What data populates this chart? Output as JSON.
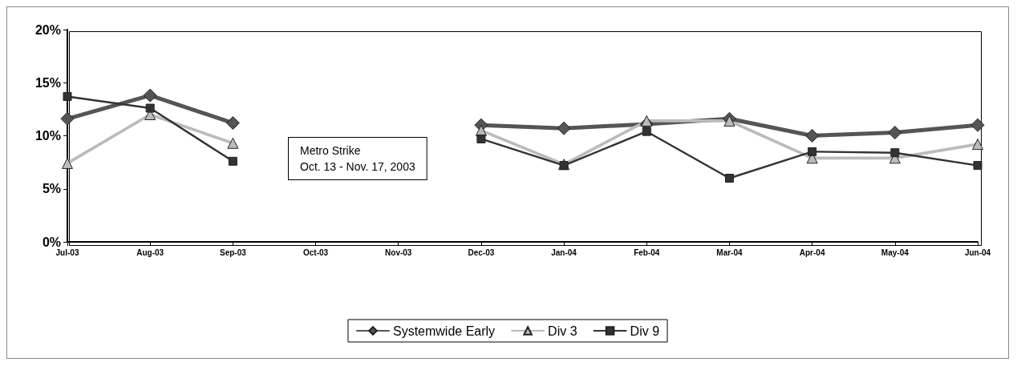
{
  "chart_data": {
    "type": "line",
    "categories": [
      "Jul-03",
      "Aug-03",
      "Sep-03",
      "Oct-03",
      "Nov-03",
      "Dec-03",
      "Jan-04",
      "Feb-04",
      "Mar-04",
      "Apr-04",
      "May-04",
      "Jun-04"
    ],
    "series": [
      {
        "name": "Systemwide Early",
        "color": "#555555",
        "marker": "diamond",
        "values": [
          11.6,
          13.8,
          11.2,
          null,
          null,
          11.0,
          10.7,
          11.1,
          11.6,
          10.0,
          10.3,
          11.0
        ]
      },
      {
        "name": "Div 3",
        "color": "#bbbbbb",
        "marker": "triangle",
        "values": [
          7.4,
          12.0,
          9.3,
          null,
          null,
          10.5,
          7.3,
          11.4,
          11.4,
          7.9,
          7.9,
          9.2
        ]
      },
      {
        "name": "Div 9",
        "color": "#333333",
        "marker": "square",
        "values": [
          13.7,
          12.6,
          7.6,
          null,
          null,
          9.7,
          7.2,
          10.4,
          6.0,
          8.5,
          8.4,
          7.2
        ]
      }
    ],
    "ylim": [
      0,
      20
    ],
    "yticks": [
      {
        "value": 0,
        "label": "0%"
      },
      {
        "value": 5,
        "label": "5%"
      },
      {
        "value": 10,
        "label": "10%"
      },
      {
        "value": 15,
        "label": "15%"
      },
      {
        "value": 20,
        "label": "20%"
      }
    ],
    "annotations": [
      "Metro Strike\nOct. 13 - Nov. 17, 2003"
    ],
    "grid": false,
    "legend": "bottom",
    "line_style": "solid"
  }
}
